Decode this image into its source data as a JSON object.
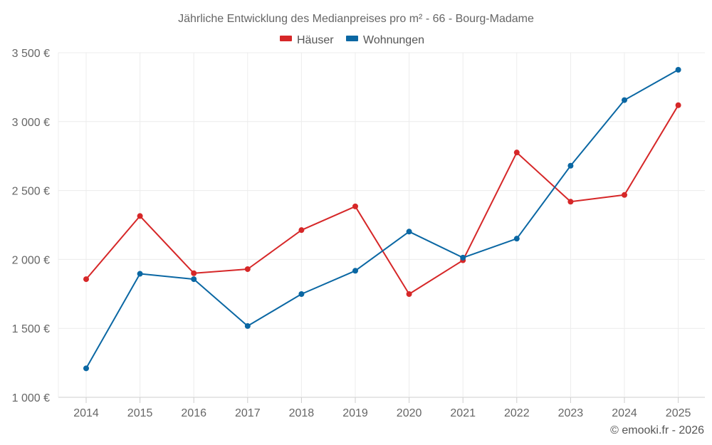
{
  "chart_data": {
    "type": "line",
    "title": "Jährliche Entwicklung des Medianpreises pro m² - 66 - Bourg-Madame",
    "xlabel": "",
    "ylabel": "",
    "categories": [
      "2014",
      "2015",
      "2016",
      "2017",
      "2018",
      "2019",
      "2020",
      "2021",
      "2022",
      "2023",
      "2024",
      "2025"
    ],
    "ylim": [
      1000,
      3500
    ],
    "yticks": [
      1000,
      1500,
      2000,
      2500,
      3000,
      3500
    ],
    "ytick_labels": [
      "1 000 €",
      "1 500 €",
      "2 000 €",
      "2 500 €",
      "3 000 €",
      "3 500 €"
    ],
    "grid": true,
    "legend_position": "top-center",
    "series": [
      {
        "name": "Häuser",
        "color": "#d62728",
        "values": [
          1857,
          2315,
          1900,
          1930,
          2213,
          2385,
          1749,
          1994,
          2776,
          2419,
          2468,
          3119
        ]
      },
      {
        "name": "Wohnungen",
        "color": "#0a67a3",
        "values": [
          1210,
          1896,
          1857,
          1517,
          1749,
          1918,
          2202,
          2013,
          2151,
          2680,
          3156,
          3376
        ]
      }
    ],
    "credit": "© emooki.fr - 2026"
  }
}
